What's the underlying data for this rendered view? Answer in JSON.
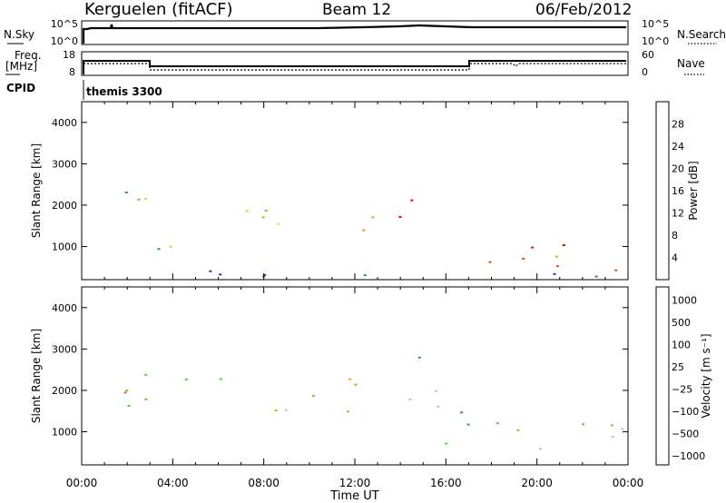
{
  "header": {
    "station": "Kerguelen (fitACF)",
    "beam": "Beam 12",
    "date": "06/Feb/2012"
  },
  "nsky_panel": {
    "left_label": "N.Sky",
    "right_label": "N.Search",
    "left_ticks": [
      "10^5",
      "10^0"
    ],
    "right_ticks": [
      "10^5",
      "10^0"
    ]
  },
  "freq_panel": {
    "left_label_1": "Freq.",
    "left_label_2": "[MHz]",
    "right_label": "Nave",
    "left_ticks": [
      "18",
      "8"
    ],
    "right_ticks": [
      "60",
      "0"
    ]
  },
  "cpid": {
    "label": "CPID",
    "program": "themis 3300"
  },
  "time_axis": {
    "title": "Time UT",
    "ticks": [
      "00:00",
      "04:00",
      "08:00",
      "12:00",
      "16:00",
      "20:00",
      "00:00"
    ]
  },
  "chart_data": [
    {
      "type": "heatmap",
      "name": "power",
      "ylabel": "Slant Range [km]",
      "xlabel": "Time UT",
      "x_ticks": [
        "00:00",
        "04:00",
        "08:00",
        "12:00",
        "16:00",
        "20:00",
        "00:00"
      ],
      "y_ticks": [
        1000,
        2000,
        3000,
        4000
      ],
      "xlim": [
        0,
        24
      ],
      "ylim": [
        200,
        4500
      ],
      "colorbar": {
        "label": "Power [dB]",
        "ticks": [
          "4",
          "8",
          "12",
          "16",
          "20",
          "24",
          "28"
        ],
        "colors": [
          "#1010ff",
          "#1c3fa8",
          "#2a8b6e",
          "#6ec83a",
          "#f0d21e",
          "#f59a12",
          "#f04a0a",
          "#ff0000"
        ]
      },
      "bands": [
        {
          "t": [
            1.9,
            4.5
          ],
          "r": [
            1500,
            2400
          ],
          "level": 3
        },
        {
          "t": [
            4.5,
            9.5
          ],
          "r": [
            1400,
            2100
          ],
          "level": 4
        },
        {
          "t": [
            9.5,
            13
          ],
          "r": [
            1350,
            1900
          ],
          "level": 5
        },
        {
          "t": [
            13,
            15.5
          ],
          "r": [
            1500,
            2200
          ],
          "level": 6
        },
        {
          "t": [
            1.5,
            7
          ],
          "r": [
            900,
            1300
          ],
          "level": 3
        },
        {
          "t": [
            17.5,
            24
          ],
          "r": [
            400,
            1300
          ],
          "level": 6
        },
        {
          "t": [
            0,
            24
          ],
          "r": [
            200,
            450
          ],
          "level": 1
        }
      ]
    },
    {
      "type": "heatmap",
      "name": "velocity",
      "ylabel": "Slant Range [km]",
      "xlabel": "Time UT",
      "x_ticks": [
        "00:00",
        "04:00",
        "08:00",
        "12:00",
        "16:00",
        "20:00",
        "00:00"
      ],
      "y_ticks": [
        1000,
        2000,
        3000,
        4000
      ],
      "xlim": [
        0,
        24
      ],
      "ylim": [
        200,
        4500
      ],
      "colorbar": {
        "label": "Velocity [m s⁻¹]",
        "ticks": [
          "1000",
          "500",
          "100",
          "25",
          "−25",
          "−100",
          "−500",
          "−1000"
        ],
        "colors": [
          "#1432c8",
          "#2a7a9a",
          "#3c9a5a",
          "#5ad23a",
          "#c0c0b8",
          "#f5a00a",
          "#f06a0a",
          "#ff1a00"
        ]
      },
      "bands": [
        {
          "t": [
            1.9,
            13
          ],
          "r": [
            1400,
            2400
          ],
          "level": 4
        },
        {
          "t": [
            13,
            15.8
          ],
          "r": [
            1800,
            2900
          ],
          "level": 3
        },
        {
          "t": [
            15.5,
            17.5
          ],
          "r": [
            400,
            2000
          ],
          "level": 3
        },
        {
          "t": [
            17.5,
            24
          ],
          "r": [
            400,
            1300
          ],
          "level": 4
        },
        {
          "t": [
            0.8,
            2.5
          ],
          "r": [
            1600,
            2100
          ],
          "level": 6
        }
      ]
    }
  ]
}
